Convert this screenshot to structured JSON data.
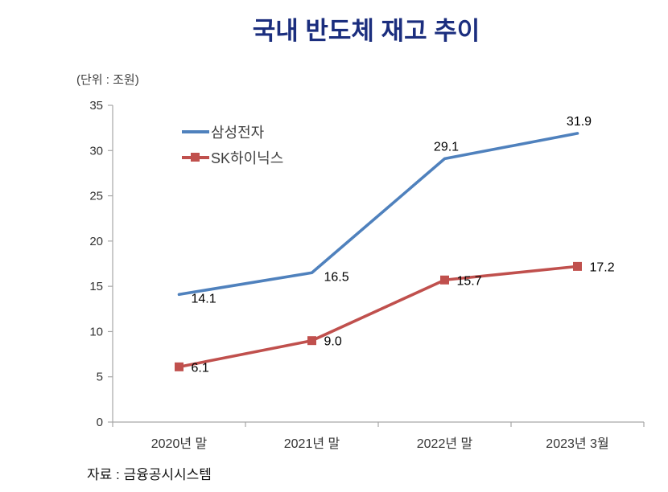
{
  "page": {
    "title": "국내 반도체 재고 추이",
    "unit_label": "(단위 : 조원)",
    "source": "자료 : 금융공시시스템"
  },
  "colors": {
    "title": "#1b2e7e",
    "samsung_line": "#4f81bd",
    "sk_hynix_line": "#c0504d",
    "axis": "#a6a6a6",
    "tick_text": "#333333",
    "data_label_text": "#000000"
  },
  "chart_data": {
    "type": "line",
    "title": "국내 반도체 재고 추이",
    "xlabel": "",
    "ylabel": "(단위 : 조원)",
    "categories": [
      "2020년 말",
      "2021년 말",
      "2022년 말",
      "2023년 3월"
    ],
    "series": [
      {
        "name": "삼성전자",
        "color": "#4f81bd",
        "marker": "none",
        "values": [
          14.1,
          16.5,
          29.1,
          31.9
        ],
        "label_placement": [
          "right",
          "right",
          "above",
          "above"
        ]
      },
      {
        "name": "SK하이닉스",
        "color": "#c0504d",
        "marker": "square",
        "values": [
          6.1,
          9.0,
          15.7,
          17.2
        ],
        "label_placement": [
          "right",
          "right",
          "right",
          "right"
        ]
      }
    ],
    "ylim": [
      0,
      35
    ],
    "ytick_step": 5,
    "grid": false,
    "legend_position": "top-left-inside",
    "data_labels": true,
    "data_label_format": "one-decimal"
  }
}
